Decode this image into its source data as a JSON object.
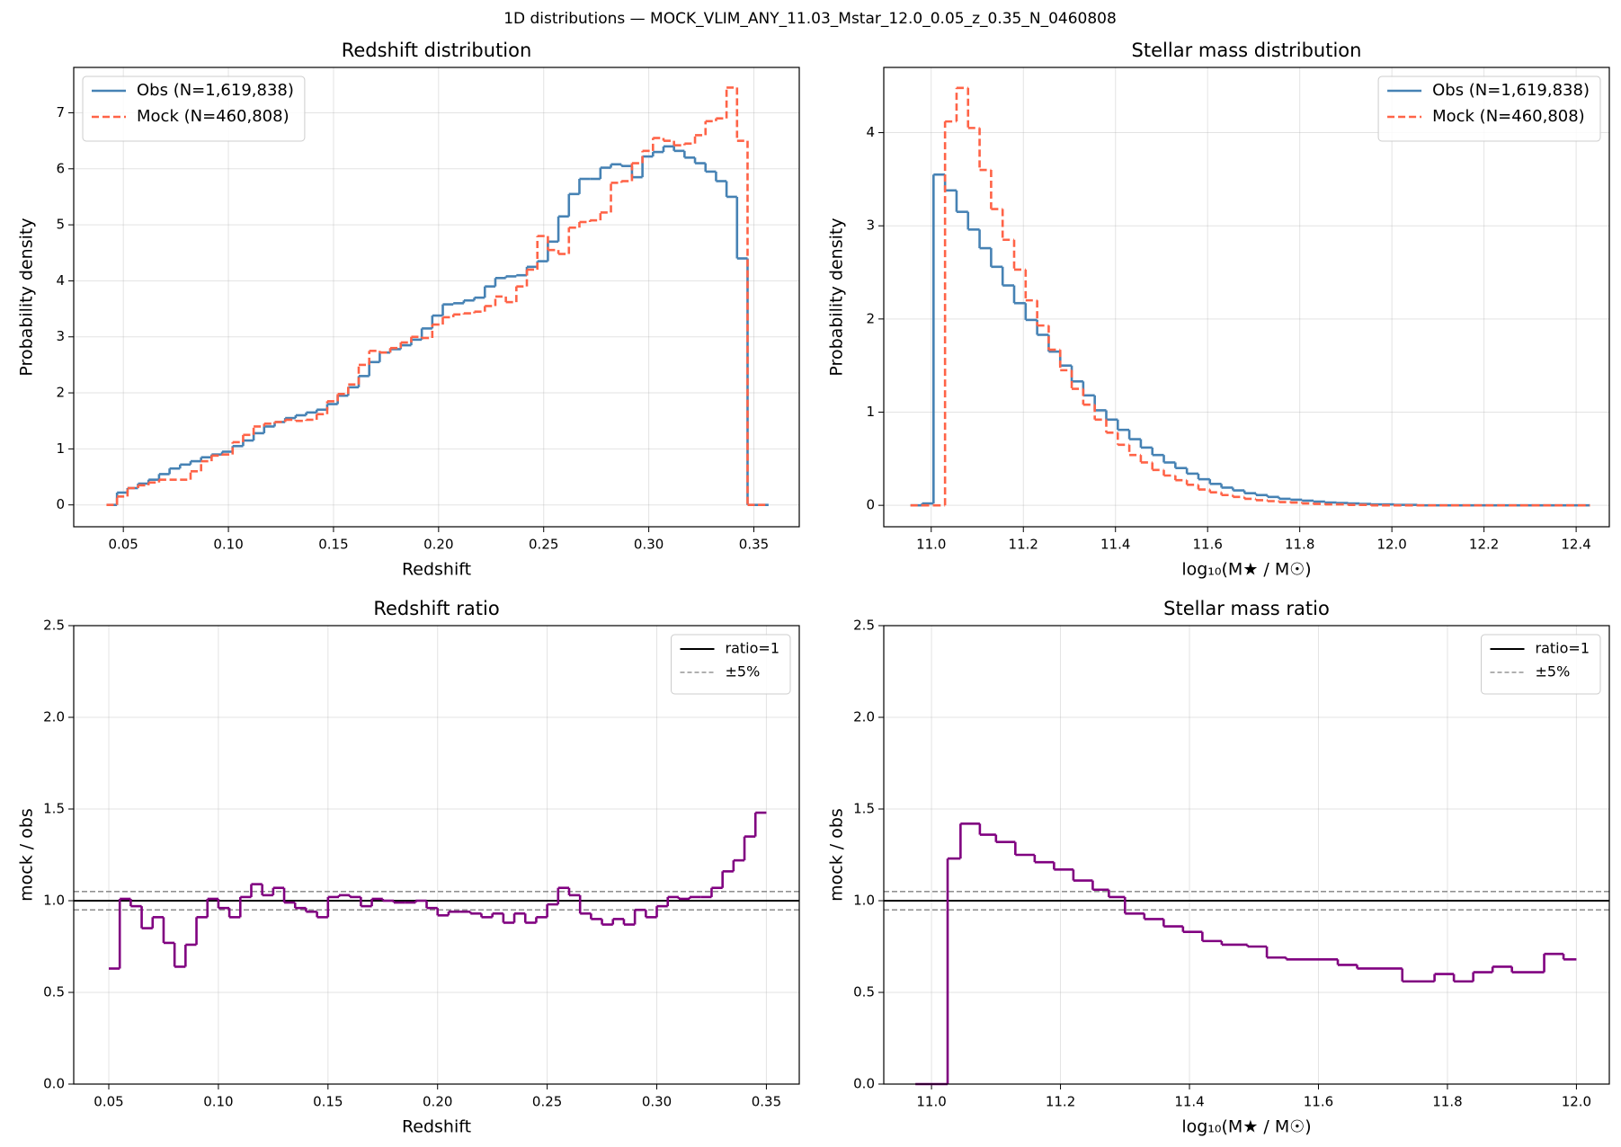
{
  "title": "1D distributions — MOCK_VLIM_ANY_11.03_Mstar_12.0_0.05_z_0.35_N_0460808",
  "chart_data": [
    {
      "type": "histogram",
      "title": "Redshift distribution",
      "x_label": "Redshift",
      "y_label": "Probability density",
      "bins": [
        0.042,
        0.047,
        0.052,
        0.057,
        0.062,
        0.067,
        0.072,
        0.077,
        0.082,
        0.087,
        0.092,
        0.097,
        0.102,
        0.107,
        0.112,
        0.117,
        0.122,
        0.127,
        0.132,
        0.137,
        0.142,
        0.147,
        0.152,
        0.157,
        0.162,
        0.167,
        0.172,
        0.177,
        0.182,
        0.187,
        0.192,
        0.197,
        0.202,
        0.207,
        0.212,
        0.217,
        0.222,
        0.227,
        0.232,
        0.237,
        0.242,
        0.247,
        0.252,
        0.257,
        0.262,
        0.267,
        0.272,
        0.277,
        0.282,
        0.287,
        0.292,
        0.297,
        0.302,
        0.307,
        0.312,
        0.317,
        0.322,
        0.327,
        0.332,
        0.337,
        0.342,
        0.347,
        0.352,
        0.357
      ],
      "series": [
        {
          "name": "Obs  (N=1,619,838)",
          "color": "#4682b4",
          "linestyle": "solid",
          "values": [
            0,
            0.22,
            0.3,
            0.38,
            0.45,
            0.55,
            0.65,
            0.72,
            0.78,
            0.85,
            0.9,
            0.95,
            1.05,
            1.15,
            1.28,
            1.4,
            1.48,
            1.55,
            1.6,
            1.65,
            1.7,
            1.8,
            1.95,
            2.1,
            2.3,
            2.55,
            2.72,
            2.78,
            2.85,
            2.95,
            3.15,
            3.38,
            3.58,
            3.6,
            3.65,
            3.7,
            3.9,
            4.05,
            4.08,
            4.1,
            4.25,
            4.35,
            4.7,
            5.15,
            5.55,
            5.82,
            5.82,
            6.02,
            6.08,
            6.05,
            5.85,
            6.22,
            6.3,
            6.4,
            6.32,
            6.2,
            6.1,
            5.95,
            5.78,
            5.5,
            4.4,
            0,
            0
          ]
        },
        {
          "name": "Mock (N=460,808)",
          "color": "#ff6347",
          "linestyle": "dashed",
          "values": [
            0,
            0.15,
            0.3,
            0.35,
            0.4,
            0.45,
            0.45,
            0.45,
            0.6,
            0.78,
            0.88,
            0.9,
            1.12,
            1.25,
            1.4,
            1.45,
            1.48,
            1.52,
            1.5,
            1.52,
            1.62,
            1.85,
            1.98,
            2.15,
            2.5,
            2.75,
            2.72,
            2.8,
            2.9,
            3.0,
            2.98,
            3.22,
            3.35,
            3.4,
            3.42,
            3.45,
            3.55,
            3.72,
            3.62,
            3.9,
            4.2,
            4.8,
            4.55,
            4.48,
            4.95,
            5.05,
            5.08,
            5.22,
            5.75,
            5.78,
            6.1,
            6.32,
            6.55,
            6.5,
            6.42,
            6.45,
            6.6,
            6.85,
            6.9,
            7.45,
            6.5,
            0,
            0
          ]
        }
      ],
      "xlim": [
        0.0264,
        0.3716
      ],
      "xticks": [
        0.05,
        {
          "value": 0.1,
          "label": "0.10"
        },
        0.15,
        {
          "value": 0.2,
          "label": "0.20"
        },
        0.25,
        {
          "value": 0.3,
          "label": "0.30"
        },
        0.35
      ],
      "ylim": [
        -0.39,
        7.81
      ],
      "yticks": [
        0,
        1,
        2,
        3,
        4,
        5,
        6,
        7
      ],
      "grid": true,
      "legend": "upper left"
    },
    {
      "type": "histogram",
      "title": "Stellar mass distribution",
      "x_label": "log₁₀(M★ / M☉)",
      "y_label": "Probability density",
      "bins": [
        10.955,
        10.98,
        11.005,
        11.03,
        11.055,
        11.08,
        11.105,
        11.13,
        11.155,
        11.18,
        11.205,
        11.23,
        11.255,
        11.28,
        11.305,
        11.33,
        11.355,
        11.38,
        11.405,
        11.43,
        11.455,
        11.48,
        11.505,
        11.53,
        11.555,
        11.58,
        11.605,
        11.63,
        11.655,
        11.68,
        11.705,
        11.73,
        11.755,
        11.78,
        11.805,
        11.83,
        11.855,
        11.88,
        11.905,
        11.93,
        11.955,
        11.98,
        12.005,
        12.03,
        12.055,
        12.08,
        12.105,
        12.13,
        12.155,
        12.18,
        12.205,
        12.23,
        12.255,
        12.28,
        12.305,
        12.33,
        12.355,
        12.38,
        12.405,
        12.43
      ],
      "series": [
        {
          "name": "Obs  (N=1,619,838)",
          "color": "#4682b4",
          "linestyle": "solid",
          "values": [
            0,
            0.02,
            3.55,
            3.38,
            3.15,
            2.96,
            2.76,
            2.56,
            2.36,
            2.17,
            1.99,
            1.83,
            1.65,
            1.5,
            1.33,
            1.18,
            1.02,
            0.92,
            0.81,
            0.71,
            0.62,
            0.54,
            0.46,
            0.4,
            0.34,
            0.28,
            0.23,
            0.19,
            0.16,
            0.13,
            0.11,
            0.09,
            0.07,
            0.06,
            0.05,
            0.04,
            0.03,
            0.025,
            0.02,
            0.015,
            0.01,
            0.01,
            0.005,
            0.005,
            0,
            0,
            0,
            0,
            0,
            0,
            0,
            0,
            0,
            0,
            0,
            0,
            0,
            0,
            0
          ]
        },
        {
          "name": "Mock (N=460,808)",
          "color": "#ff6347",
          "linestyle": "dashed",
          "values": [
            0,
            0,
            0,
            4.12,
            4.48,
            4.05,
            3.6,
            3.18,
            2.85,
            2.53,
            2.2,
            1.93,
            1.67,
            1.45,
            1.25,
            1.08,
            0.92,
            0.78,
            0.65,
            0.54,
            0.46,
            0.38,
            0.32,
            0.27,
            0.22,
            0.17,
            0.14,
            0.11,
            0.09,
            0.07,
            0.055,
            0.045,
            0.035,
            0.03,
            0.02,
            0.015,
            0.01,
            0.01,
            0.005,
            0.005,
            0,
            0,
            0,
            0,
            0,
            0,
            0,
            0,
            0,
            0,
            0,
            0,
            0,
            0,
            0,
            0,
            0,
            0,
            0
          ]
        }
      ],
      "xlim": [
        10.897,
        12.472
      ],
      "xticks": [
        {
          "value": 11,
          "label": "11.0"
        },
        11.2,
        11.4,
        11.6,
        11.8,
        {
          "value": 12,
          "label": "12.0"
        },
        12.2,
        12.4
      ],
      "ylim": [
        -0.23,
        4.7
      ],
      "yticks": [
        0,
        1,
        2,
        3,
        4
      ],
      "grid": true,
      "legend": "upper right"
    },
    {
      "type": "histogram",
      "title": "Redshift ratio",
      "x_label": "Redshift",
      "y_label": "mock / obs",
      "bins": [
        0.05,
        0.055,
        0.06,
        0.065,
        0.07,
        0.075,
        0.08,
        0.085,
        0.09,
        0.095,
        0.1,
        0.105,
        0.11,
        0.115,
        0.12,
        0.125,
        0.13,
        0.135,
        0.14,
        0.145,
        0.15,
        0.155,
        0.16,
        0.165,
        0.17,
        0.175,
        0.18,
        0.185,
        0.19,
        0.195,
        0.2,
        0.205,
        0.21,
        0.215,
        0.22,
        0.225,
        0.23,
        0.235,
        0.24,
        0.245,
        0.25,
        0.255,
        0.26,
        0.265,
        0.27,
        0.275,
        0.28,
        0.285,
        0.29,
        0.295,
        0.3,
        0.305,
        0.31,
        0.315,
        0.32,
        0.325,
        0.33,
        0.335,
        0.34,
        0.345,
        0.35
      ],
      "series": [
        {
          "color": "#800080",
          "linestyle": "solid",
          "values": [
            0.63,
            1.01,
            0.97,
            0.85,
            0.91,
            0.77,
            0.64,
            0.76,
            0.91,
            1.01,
            0.96,
            0.91,
            1.02,
            1.09,
            1.03,
            1.07,
            0.99,
            0.96,
            0.94,
            0.91,
            1.02,
            1.03,
            1.02,
            0.97,
            1.01,
            1.0,
            0.99,
            0.99,
            1.0,
            0.96,
            0.92,
            0.94,
            0.94,
            0.93,
            0.91,
            0.93,
            0.88,
            0.93,
            0.88,
            0.91,
            0.98,
            1.07,
            1.03,
            0.93,
            0.9,
            0.87,
            0.9,
            0.87,
            0.95,
            0.91,
            0.97,
            1.02,
            1.01,
            1.02,
            1.02,
            1.07,
            1.16,
            1.22,
            1.35,
            1.48
          ]
        }
      ],
      "reference_lines": [
        {
          "name": "ratio=1",
          "values": [
            1
          ],
          "color": "#000000",
          "linestyle": "solid"
        },
        {
          "name": "±5%",
          "values": [
            0.95,
            1.05
          ],
          "color": "#808080",
          "linestyle": "dashed"
        }
      ],
      "xlim": [
        0.034,
        0.365
      ],
      "xticks": [
        0.05,
        {
          "value": 0.1,
          "label": "0.10"
        },
        0.15,
        {
          "value": 0.2,
          "label": "0.20"
        },
        0.25,
        {
          "value": 0.3,
          "label": "0.30"
        },
        0.35
      ],
      "ylim": [
        0,
        2.5
      ],
      "yticks": [
        {
          "value": 0,
          "label": "0.0"
        },
        0.5,
        {
          "value": 1,
          "label": "1.0"
        },
        1.5,
        {
          "value": 2,
          "label": "2.0"
        },
        2.5
      ],
      "grid": true,
      "legend": "upper right"
    },
    {
      "type": "histogram",
      "title": "Stellar mass ratio",
      "x_label": "log₁₀(M★ / M☉)",
      "y_label": "mock / obs",
      "bins": [
        10.975,
        11.025,
        11.045,
        11.075,
        11.1,
        11.13,
        11.16,
        11.19,
        11.22,
        11.25,
        11.275,
        11.3,
        11.33,
        11.36,
        11.39,
        11.42,
        11.45,
        11.49,
        11.52,
        11.55,
        11.63,
        11.66,
        11.73,
        11.78,
        11.81,
        11.84,
        11.87,
        11.9,
        11.95,
        11.98,
        12.0
      ],
      "series": [
        {
          "color": "#800080",
          "linestyle": "solid",
          "values": [
            0,
            1.23,
            1.42,
            1.36,
            1.32,
            1.25,
            1.21,
            1.17,
            1.11,
            1.06,
            1.02,
            0.93,
            0.9,
            0.86,
            0.83,
            0.78,
            0.76,
            0.75,
            0.69,
            0.68,
            0.65,
            0.63,
            0.56,
            0.6,
            0.56,
            0.61,
            0.64,
            0.61,
            0.71,
            0.68
          ]
        }
      ],
      "reference_lines": [
        {
          "name": "ratio=1",
          "values": [
            1
          ],
          "color": "#000000",
          "linestyle": "solid"
        },
        {
          "name": "±5%",
          "values": [
            0.95,
            1.05
          ],
          "color": "#808080",
          "linestyle": "dashed"
        }
      ],
      "xlim": [
        10.926,
        12.051
      ],
      "xticks": [
        {
          "value": 11,
          "label": "11.0"
        },
        11.2,
        11.4,
        11.6,
        11.8,
        {
          "value": 12,
          "label": "12.0"
        }
      ],
      "ylim": [
        0,
        2.5
      ],
      "yticks": [
        {
          "value": 0,
          "label": "0.0"
        },
        0.5,
        {
          "value": 1,
          "label": "1.0"
        },
        1.5,
        {
          "value": 2,
          "label": "2.0"
        },
        2.5
      ],
      "grid": true,
      "legend": "upper right"
    }
  ]
}
